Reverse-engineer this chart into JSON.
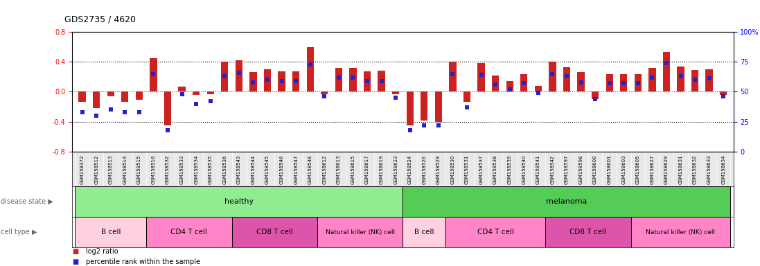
{
  "title": "GDS2735 / 4620",
  "samples": [
    "GSM158372",
    "GSM158512",
    "GSM158513",
    "GSM158514",
    "GSM158515",
    "GSM158516",
    "GSM158532",
    "GSM158533",
    "GSM158534",
    "GSM158535",
    "GSM158536",
    "GSM158543",
    "GSM158544",
    "GSM158545",
    "GSM158546",
    "GSM158547",
    "GSM158548",
    "GSM158612",
    "GSM158613",
    "GSM158615",
    "GSM158617",
    "GSM158619",
    "GSM158623",
    "GSM158524",
    "GSM158526",
    "GSM158529",
    "GSM158530",
    "GSM158531",
    "GSM158537",
    "GSM158538",
    "GSM158539",
    "GSM158540",
    "GSM158541",
    "GSM158542",
    "GSM158597",
    "GSM158598",
    "GSM158600",
    "GSM158601",
    "GSM158603",
    "GSM158605",
    "GSM158627",
    "GSM158629",
    "GSM158631",
    "GSM158632",
    "GSM158633",
    "GSM158634"
  ],
  "log2_ratio": [
    -0.13,
    -0.22,
    -0.06,
    -0.13,
    -0.11,
    0.45,
    -0.45,
    0.07,
    -0.04,
    -0.03,
    0.4,
    0.42,
    0.26,
    0.3,
    0.27,
    0.27,
    0.6,
    -0.03,
    0.32,
    0.32,
    0.27,
    0.28,
    -0.03,
    -0.45,
    -0.38,
    -0.4,
    0.4,
    -0.13,
    0.38,
    0.22,
    0.14,
    0.24,
    0.08,
    0.4,
    0.33,
    0.26,
    -0.1,
    0.24,
    0.24,
    0.24,
    0.32,
    0.53,
    0.34,
    0.29,
    0.3,
    -0.04
  ],
  "percentile": [
    33,
    30,
    35,
    33,
    33,
    65,
    18,
    48,
    40,
    42,
    63,
    66,
    58,
    60,
    59,
    59,
    73,
    46,
    62,
    62,
    59,
    59,
    45,
    18,
    22,
    22,
    65,
    37,
    64,
    56,
    52,
    57,
    49,
    65,
    63,
    58,
    44,
    57,
    57,
    57,
    62,
    74,
    63,
    60,
    61,
    46
  ],
  "disease_groups": [
    {
      "label": "healthy",
      "start": 0,
      "end": 23,
      "color": "#90EE90"
    },
    {
      "label": "melanoma",
      "start": 23,
      "end": 46,
      "color": "#55CC55"
    }
  ],
  "cell_type_groups": [
    {
      "label": "B cell",
      "start": 0,
      "end": 5,
      "color": "#FFCCDD"
    },
    {
      "label": "CD4 T cell",
      "start": 5,
      "end": 11,
      "color": "#FF80C0"
    },
    {
      "label": "CD8 T cell",
      "start": 11,
      "end": 17,
      "color": "#EE66BB"
    },
    {
      "label": "Natural killer (NK) cell",
      "start": 17,
      "end": 23,
      "color": "#FF80C0"
    },
    {
      "label": "B cell",
      "start": 23,
      "end": 26,
      "color": "#FFCCDD"
    },
    {
      "label": "CD4 T cell",
      "start": 26,
      "end": 33,
      "color": "#FF80C0"
    },
    {
      "label": "CD8 T cell",
      "start": 33,
      "end": 39,
      "color": "#EE66BB"
    },
    {
      "label": "Natural killer (NK) cell",
      "start": 39,
      "end": 46,
      "color": "#FF80C0"
    }
  ],
  "bar_color": "#CC2222",
  "dot_color": "#2222CC",
  "ylim": [
    -0.8,
    0.8
  ],
  "yticks_left": [
    -0.8,
    -0.4,
    0.0,
    0.4,
    0.8
  ],
  "yticks_right": [
    0,
    25,
    50,
    75,
    100
  ],
  "dotted_lines": [
    -0.4,
    0.4
  ],
  "zero_line": 0.0,
  "background_color": "#F0F0F0"
}
